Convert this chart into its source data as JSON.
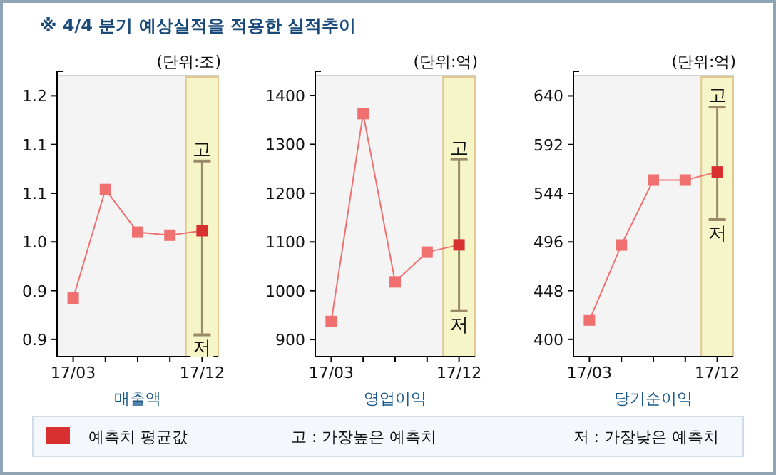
{
  "chart_data": [
    {
      "type": "other",
      "title": "※ 4/4 분기 예상실적을 적용한 실적추이"
    },
    {
      "type": "line",
      "subtitle": "(단위:조)",
      "xlabel": "매출액",
      "marker": "square",
      "line_style": "solid",
      "grid": false,
      "categories": [
        "17/03",
        null,
        null,
        null,
        "17/12"
      ],
      "series": [
        {
          "values": [
            0.93,
            1.075,
            1.018,
            1.014,
            1.02
          ],
          "color": "#f07070",
          "colors": [
            "#f07070",
            "#f07070",
            "#f07070",
            "#f07070",
            "#d83030"
          ],
          "errors": [
            null,
            null,
            null,
            null,
            [
              0.881,
              1.113
            ]
          ]
        }
      ],
      "ylim": [
        0.852,
        1.227
      ],
      "yticks": [
        {
          "value": 0.875,
          "label": "0.9"
        },
        {
          "value": 0.94,
          "label": "0.9"
        },
        {
          "value": 1.005,
          "label": "1.0"
        },
        {
          "value": 1.07,
          "label": "1.1"
        },
        {
          "value": 1.135,
          "label": "1.1"
        },
        {
          "value": 1.2,
          "label": "1.2"
        }
      ],
      "bands": [
        {
          "axis": "x",
          "from": "17/12",
          "to": "17/12",
          "color": "#f5f5c8"
        }
      ],
      "annotations": [
        {
          "text": "고",
          "x": "17/12",
          "y": 1.113
        },
        {
          "text": "저",
          "x": "17/12",
          "y": 0.881
        }
      ]
    },
    {
      "type": "line",
      "subtitle": "(단위:억)",
      "xlabel": "영업이익",
      "marker": "square",
      "line_style": "solid",
      "grid": false,
      "categories": [
        "17/03",
        null,
        null,
        null,
        "17/12"
      ],
      "series": [
        {
          "values": [
            937,
            1363,
            1018,
            1079,
            1094
          ],
          "color": "#f07070",
          "colors": [
            "#f07070",
            "#f07070",
            "#f07070",
            "#f07070",
            "#d83030"
          ],
          "errors": [
            null,
            null,
            null,
            null,
            [
              959,
              1269
            ]
          ]
        }
      ],
      "ylim": [
        865,
        1441
      ],
      "yticks": [
        900,
        1000,
        1100,
        1200,
        1300,
        1400
      ],
      "bands": [
        {
          "axis": "x",
          "from": "17/12",
          "to": "17/12",
          "color": "#f5f5c8"
        }
      ],
      "annotations": [
        {
          "text": "고",
          "x": "17/12",
          "y": 1269
        },
        {
          "text": "저",
          "x": "17/12",
          "y": 959
        }
      ]
    },
    {
      "type": "line",
      "subtitle": "(단위:억)",
      "xlabel": "당기순이익",
      "marker": "square",
      "line_style": "solid",
      "grid": false,
      "categories": [
        "17/03",
        null,
        null,
        null,
        "17/12"
      ],
      "series": [
        {
          "values": [
            419,
            493,
            557,
            557,
            565
          ],
          "color": "#f07070",
          "colors": [
            "#f07070",
            "#f07070",
            "#f07070",
            "#f07070",
            "#d83030"
          ],
          "errors": [
            null,
            null,
            null,
            null,
            [
              518,
              629
            ]
          ]
        }
      ],
      "ylim": [
        383,
        660
      ],
      "yticks": [
        400,
        448,
        496,
        544,
        592,
        640
      ],
      "bands": [
        {
          "axis": "x",
          "from": "17/12",
          "to": "17/12",
          "color": "#f5f5c8"
        }
      ],
      "annotations": [
        {
          "text": "고",
          "x": "17/12",
          "y": 629
        },
        {
          "text": "저",
          "x": "17/12",
          "y": 518
        }
      ]
    },
    {
      "type": "other",
      "colors": [
        "#d83030"
      ],
      "annotations": [
        "예측치 평균값",
        "고 : 가장높은 예측치",
        "저 : 가장낮은 예측치"
      ]
    }
  ]
}
